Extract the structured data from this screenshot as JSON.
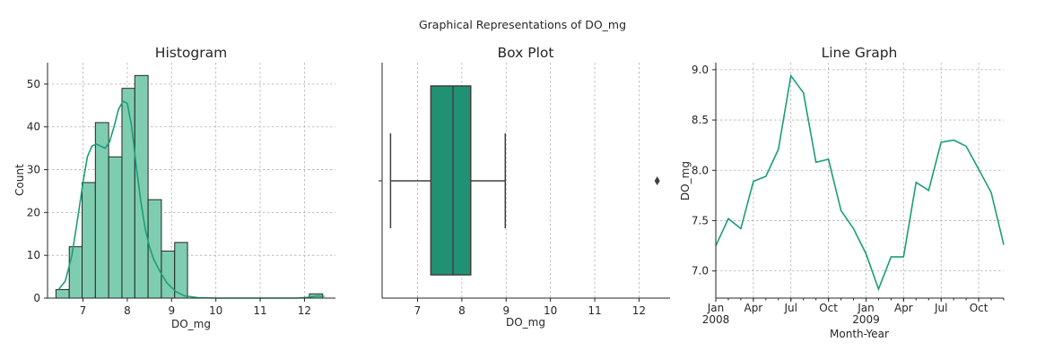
{
  "figure": {
    "title": "Graphical Representations of DO_mg"
  },
  "colors": {
    "accent": "#1b9e77",
    "bar_fill": "#7fcdb0",
    "box_fill": "#209173",
    "edge": "#262626",
    "kde": "#1b9e77"
  },
  "chart_data": [
    {
      "type": "bar",
      "title": "Histogram",
      "xlabel": "DO_mg",
      "ylabel": "Count",
      "xlim": [
        6.2,
        12.7
      ],
      "ylim": [
        0,
        55
      ],
      "xticks": [
        "7",
        "8",
        "9",
        "10",
        "11",
        "12"
      ],
      "yticks": [
        "0",
        "10",
        "20",
        "30",
        "40",
        "50"
      ],
      "grid": true,
      "bins": [
        {
          "x0": 6.39,
          "x1": 6.69,
          "count": 2
        },
        {
          "x0": 6.69,
          "x1": 6.98,
          "count": 12
        },
        {
          "x0": 6.98,
          "x1": 7.28,
          "count": 27
        },
        {
          "x0": 7.28,
          "x1": 7.58,
          "count": 41
        },
        {
          "x0": 7.58,
          "x1": 7.88,
          "count": 33
        },
        {
          "x0": 7.88,
          "x1": 8.17,
          "count": 49
        },
        {
          "x0": 8.17,
          "x1": 8.47,
          "count": 52
        },
        {
          "x0": 8.47,
          "x1": 8.77,
          "count": 23
        },
        {
          "x0": 8.77,
          "x1": 9.07,
          "count": 11
        },
        {
          "x0": 9.07,
          "x1": 9.36,
          "count": 13
        },
        {
          "x0": 12.11,
          "x1": 12.41,
          "count": 1
        }
      ],
      "kde": {
        "x": [
          6.45,
          6.6,
          6.75,
          6.9,
          7.0,
          7.1,
          7.2,
          7.3,
          7.4,
          7.5,
          7.6,
          7.7,
          7.8,
          7.9,
          8.0,
          8.1,
          8.2,
          8.3,
          8.4,
          8.5,
          8.6,
          8.75,
          8.9,
          9.1,
          9.3,
          9.6,
          10.0,
          11.0,
          11.8,
          12.1,
          12.3,
          12.45
        ],
        "y": [
          2,
          4,
          10,
          20,
          27,
          33,
          35.5,
          36,
          35.5,
          35,
          36.5,
          40,
          44,
          46,
          45.5,
          40,
          31,
          23,
          16.5,
          12,
          9,
          6,
          3.5,
          1.5,
          0.5,
          0.1,
          0,
          0,
          0,
          0.2,
          0.5,
          0.4
        ]
      }
    },
    {
      "type": "box",
      "title": "Box Plot",
      "xlabel": "DO_mg",
      "xlim": [
        6.2,
        12.7
      ],
      "xticks": [
        "7",
        "8",
        "9",
        "10",
        "11",
        "12"
      ],
      "grid": true,
      "stats": {
        "whisker_low": 6.39,
        "q1": 7.3,
        "median": 7.8,
        "q3": 8.2,
        "whisker_high": 8.98
      },
      "outliers": [
        12.41
      ]
    },
    {
      "type": "line",
      "title": "Line Graph",
      "xlabel": "Month-Year",
      "ylabel": "DO_mg",
      "ylim": [
        6.73,
        9.07
      ],
      "yticks": [
        "7.0",
        "7.5",
        "8.0",
        "8.5",
        "9.0"
      ],
      "grid": true,
      "xticks": [
        {
          "label": "Jan",
          "sub": "2008",
          "at": "2008-01"
        },
        {
          "label": "Apr",
          "sub": "",
          "at": "2008-04"
        },
        {
          "label": "Jul",
          "sub": "",
          "at": "2008-07"
        },
        {
          "label": "Oct",
          "sub": "",
          "at": "2008-10"
        },
        {
          "label": "Jan",
          "sub": "2009",
          "at": "2009-01"
        },
        {
          "label": "Apr",
          "sub": "",
          "at": "2009-04"
        },
        {
          "label": "Jul",
          "sub": "",
          "at": "2009-07"
        },
        {
          "label": "Oct",
          "sub": "",
          "at": "2009-10"
        }
      ],
      "x": [
        "2008-01",
        "2008-02",
        "2008-03",
        "2008-04",
        "2008-05",
        "2008-06",
        "2008-07",
        "2008-08",
        "2008-09",
        "2008-10",
        "2008-11",
        "2008-12",
        "2009-01",
        "2009-02",
        "2009-03",
        "2009-04",
        "2009-05",
        "2009-06",
        "2009-07",
        "2009-08",
        "2009-09",
        "2009-10",
        "2009-11",
        "2009-12"
      ],
      "values": [
        7.25,
        7.52,
        7.42,
        7.89,
        7.94,
        8.21,
        8.94,
        8.77,
        8.08,
        8.11,
        7.6,
        7.42,
        7.17,
        6.82,
        7.14,
        7.14,
        7.88,
        7.8,
        8.28,
        8.3,
        8.24,
        8.01,
        7.78,
        7.26
      ]
    }
  ]
}
